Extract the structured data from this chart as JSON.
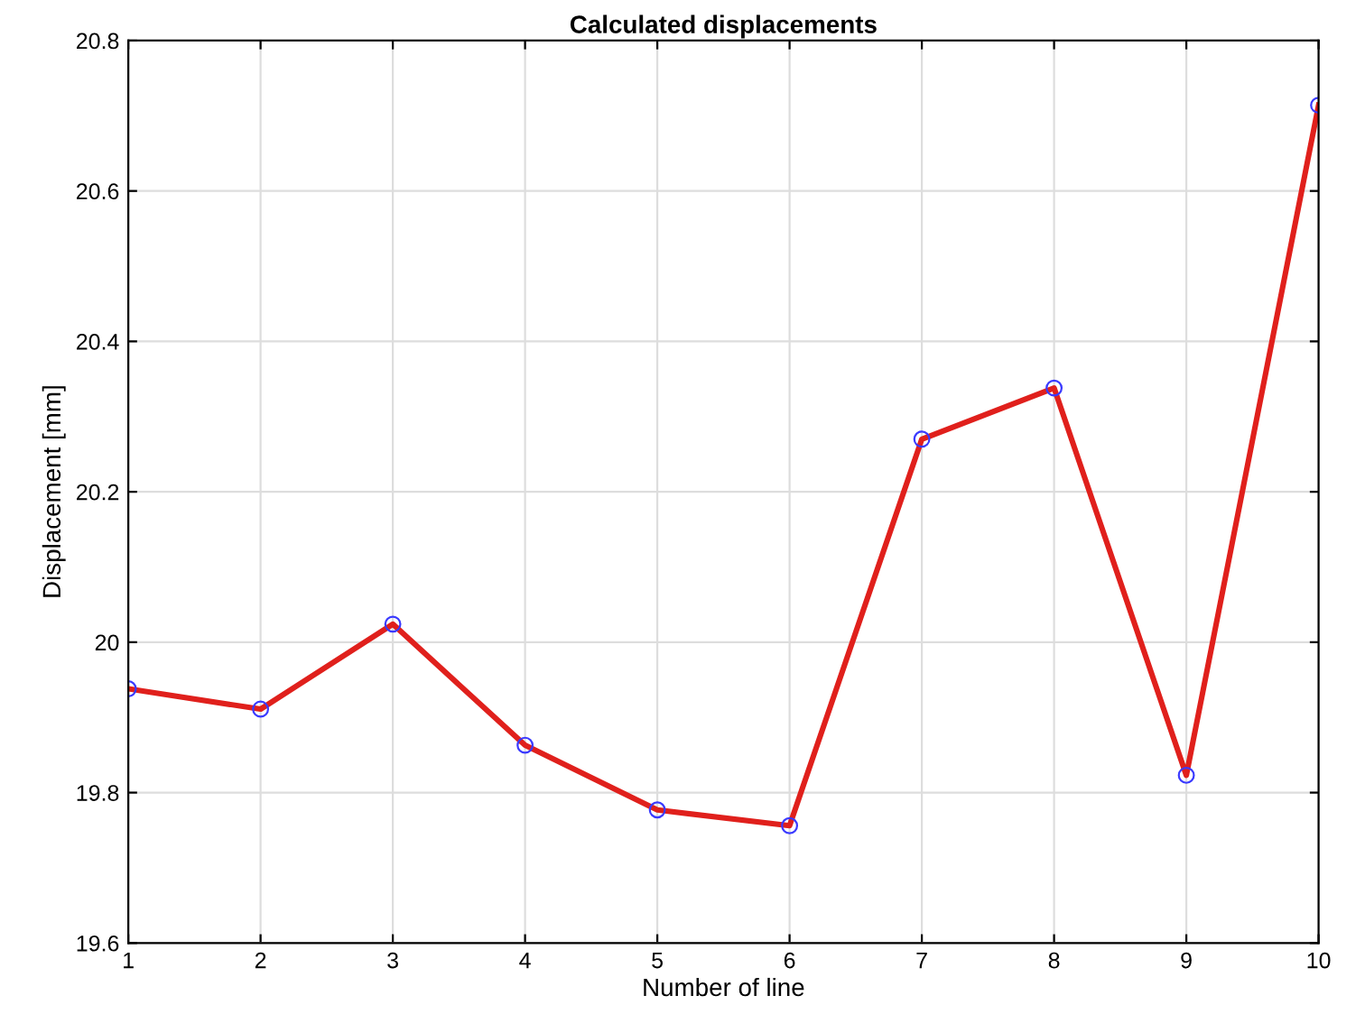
{
  "chart_data": {
    "type": "line",
    "title": "Calculated displacements",
    "xlabel": "Number of line",
    "ylabel": "Displacement [mm]",
    "x": [
      1,
      2,
      3,
      4,
      5,
      6,
      7,
      8,
      9,
      10
    ],
    "series": [
      {
        "color": "#e0201c",
        "values": [
          19.938,
          19.911,
          20.024,
          19.863,
          19.777,
          19.756,
          20.27,
          20.338,
          19.823,
          20.714
        ]
      }
    ],
    "xlim": [
      1,
      10
    ],
    "xticks": [
      1,
      2,
      3,
      4,
      5,
      6,
      7,
      8,
      9,
      10
    ],
    "ylim": [
      19.6,
      20.8
    ],
    "yticks": [
      19.6,
      19.8,
      20,
      20.2,
      20.4,
      20.6,
      20.8
    ],
    "grid": true,
    "marker": "circle",
    "line_style": "solid",
    "legend": false
  }
}
